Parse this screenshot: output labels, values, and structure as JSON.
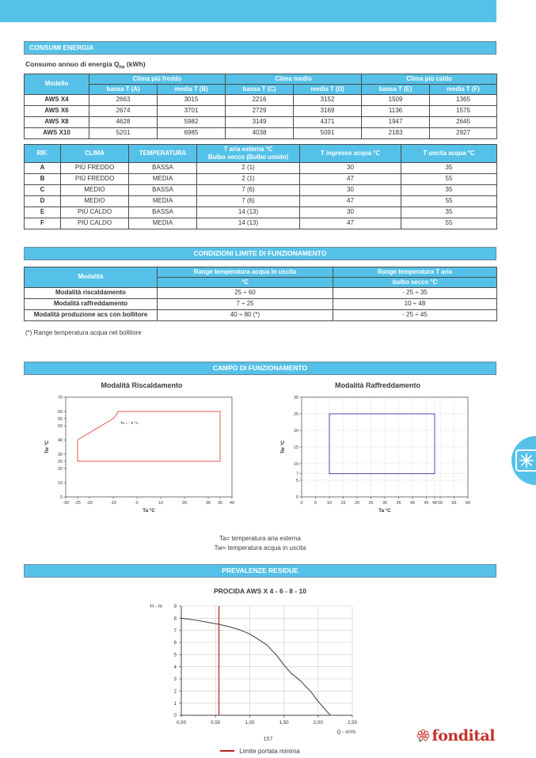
{
  "sections": {
    "consumi": {
      "title": "CONSUMI ENERGIA",
      "subtitle_prefix": "Consumo annuo di energia Q",
      "subtitle_sub": "he",
      "subtitle_suffix": " (kWh)"
    },
    "condizioni": {
      "title": "CONDIZIONI LIMITE DI FUNZIONAMENTO"
    },
    "campo": {
      "title": "CAMPO DI FUNZIONAMENTO"
    },
    "prevalenze": {
      "title": "PREVALENZE RESIDUE"
    }
  },
  "energy_table": {
    "model_header": "Modello",
    "groups": [
      "Clima più freddo",
      "Clima medio",
      "Clima più caldo"
    ],
    "subheaders": [
      "bassa T (A)",
      "media T (B)",
      "bassa T (C)",
      "media T (D)",
      "bassa T (E)",
      "media T (F)"
    ],
    "rows": [
      {
        "model": "AWS X4",
        "values": [
          "2663",
          "3015",
          "2216",
          "3152",
          "1509",
          "1365"
        ]
      },
      {
        "model": "AWS X6",
        "values": [
          "2674",
          "3701",
          "2729",
          "3169",
          "1136",
          "1575"
        ]
      },
      {
        "model": "AWS X8",
        "values": [
          "4628",
          "5982",
          "3149",
          "4371",
          "1947",
          "2645"
        ]
      },
      {
        "model": "AWS X10",
        "values": [
          "5201",
          "6985",
          "4038",
          "5091",
          "2183",
          "2927"
        ]
      }
    ]
  },
  "rif_table": {
    "headers": [
      {
        "text": "RIF.",
        "align": "left"
      },
      {
        "text": "CLIMA"
      },
      {
        "text": "TEMPERATURA"
      },
      {
        "line1": "T aria esterna °C",
        "line2": "Bulbo secco (Bulbo umido)"
      },
      {
        "text": "T ingresso acqua °C"
      },
      {
        "text": "T uscita acqua °C"
      }
    ],
    "rows": [
      [
        "A",
        "PIÙ FREDDO",
        "BASSA",
        "2 (1)",
        "30",
        "35"
      ],
      [
        "B",
        "PIÙ FREDDO",
        "MEDIA",
        "2 (1)",
        "47",
        "55"
      ],
      [
        "C",
        "MEDIO",
        "BASSA",
        "7 (6)",
        "30",
        "35"
      ],
      [
        "D",
        "MEDIO",
        "MEDIA",
        "7 (6)",
        "47",
        "55"
      ],
      [
        "E",
        "PIÙ CALDO",
        "BASSA",
        "14 (13)",
        "30",
        "35"
      ],
      [
        "F",
        "PIÙ CALDO",
        "MEDIA",
        "14 (13)",
        "47",
        "55"
      ]
    ]
  },
  "limits_table": {
    "col1_header": "Modalità",
    "group_headers": [
      "Range temperatura acqua in uscita",
      "Range temperatura T aria"
    ],
    "sub_headers": [
      "°C",
      "bulbo secco °C"
    ],
    "rows": [
      {
        "label": "Modalità riscaldamento",
        "values": [
          "25 ÷ 60",
          "- 25 ÷ 35"
        ]
      },
      {
        "label": "Modalità raffreddamento",
        "values": [
          "7 ÷ 25",
          "10 ÷ 48"
        ]
      },
      {
        "label": "Modalità produzione acs con bollitore",
        "values": [
          "40 ÷ 80 (*)",
          "- 25 ÷ 45"
        ]
      }
    ],
    "footnote": "(*) Range temperatura acqua nel bollitore"
  },
  "campo_notes": [
    "Ta= temperatura aria esterna",
    "Tw= temperatura acqua in uscita"
  ],
  "chart_data": [
    {
      "id": "heating",
      "type": "area",
      "title": "Modalità Riscaldamento",
      "xlabel": "Ta °C",
      "ylabel": "Tw °C",
      "xlim": [
        -30,
        40
      ],
      "ylim": [
        0,
        70
      ],
      "xticks": [
        -30,
        -25,
        -20,
        -10,
        0,
        10,
        20,
        30,
        35,
        40
      ],
      "yticks": [
        0,
        10,
        20,
        25,
        30,
        40,
        50,
        55,
        60,
        70
      ],
      "polygon": [
        [
          -25,
          25
        ],
        [
          -25,
          40
        ],
        [
          -10,
          55
        ],
        [
          -9,
          57
        ],
        [
          -8,
          60
        ],
        [
          35,
          60
        ],
        [
          35,
          25
        ]
      ],
      "annotation": {
        "text": "Ta = - 8 °C",
        "x": -7,
        "y": 51
      },
      "line_color": "#e4564f",
      "grid": false
    },
    {
      "id": "cooling",
      "type": "area",
      "title": "Modalità Raffreddamento",
      "xlabel": "Ta °C",
      "ylabel": "Tw °C",
      "xlim": [
        0,
        60
      ],
      "ylim": [
        0,
        30
      ],
      "xticks": [
        0,
        5,
        10,
        15,
        20,
        25,
        30,
        35,
        40,
        45,
        48,
        50,
        55,
        60
      ],
      "yticks": [
        0,
        5,
        7,
        10,
        15,
        20,
        25,
        30
      ],
      "polygon": [
        [
          10,
          7
        ],
        [
          10,
          25
        ],
        [
          48,
          25
        ],
        [
          48,
          7
        ]
      ],
      "line_color": "#4a4ab8",
      "grid": true
    },
    {
      "id": "pump",
      "type": "line",
      "title": "PROCIDA AWS X 4 - 6 - 8 - 10",
      "xlabel": "Q - m³/h",
      "ylabel": "H - m",
      "xlim": [
        0,
        2.5
      ],
      "ylim": [
        0,
        9
      ],
      "xticks": [
        0,
        0.5,
        1,
        1.5,
        2,
        2.5
      ],
      "xtick_labels": [
        "0,00",
        "0,50",
        "1,00",
        "1,50",
        "2,00",
        "2,50"
      ],
      "yticks": [
        0,
        1,
        2,
        3,
        4,
        5,
        6,
        7,
        8,
        9
      ],
      "points": [
        [
          0,
          8
        ],
        [
          0.2,
          7.85
        ],
        [
          0.4,
          7.65
        ],
        [
          0.55,
          7.5
        ],
        [
          0.7,
          7.3
        ],
        [
          0.85,
          7.05
        ],
        [
          1.0,
          6.7
        ],
        [
          1.1,
          6.35
        ],
        [
          1.25,
          5.8
        ],
        [
          1.4,
          4.9
        ],
        [
          1.5,
          4.15
        ],
        [
          1.6,
          3.5
        ],
        [
          1.75,
          2.8
        ],
        [
          1.9,
          1.9
        ],
        [
          2.0,
          1.15
        ],
        [
          2.1,
          0.5
        ],
        [
          2.18,
          0
        ]
      ],
      "vline": {
        "x": 0.55,
        "color": "#b51f1f",
        "label": "Limite portata minima"
      },
      "line_color": "#4a4a4a",
      "grid": true
    }
  ],
  "footer": {
    "page": "157",
    "logo": "fondital"
  },
  "colors": {
    "accent_blue": "#55c1e8",
    "bar_border": "#6d8899",
    "table_border": "#4c4c4c",
    "rif_red": "#c4372e",
    "heating_line": "#e4564f",
    "cooling_line": "#4a4ab8",
    "curve": "#4a4a4a",
    "limit_line": "#b51f1f",
    "grid": "#c9c9c9",
    "logo_red": "#c5322c",
    "text": "#3b3b3b"
  }
}
